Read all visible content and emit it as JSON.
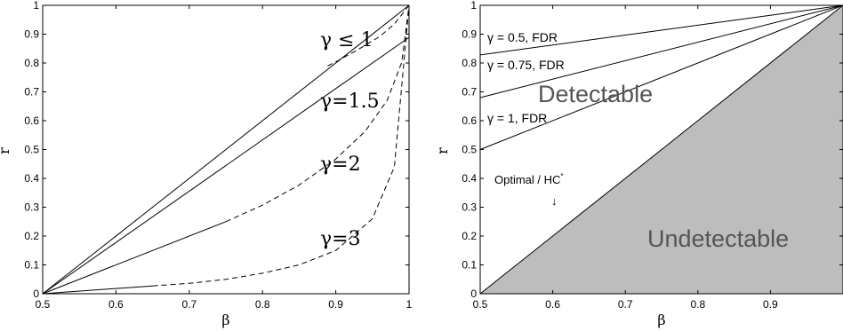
{
  "chart_data": [
    {
      "type": "line",
      "xlabel": "β",
      "ylabel": "r",
      "xlim": [
        0.5,
        1
      ],
      "ylim": [
        0,
        1
      ],
      "xticks": [
        "0.5",
        "0.6",
        "0.7",
        "0.8",
        "0.9",
        "1"
      ],
      "yticks": [
        "0",
        "0.1",
        "0.2",
        "0.3",
        "0.4",
        "0.5",
        "0.6",
        "0.7",
        "0.8",
        "0.9",
        "1"
      ],
      "series": [
        {
          "name": "γ ≤ 1",
          "style": "solid",
          "x": [
            0.5,
            1.0
          ],
          "y": [
            0.0,
            1.0
          ]
        },
        {
          "name": "γ=1.5",
          "style": "solid",
          "x": [
            0.5,
            1.0
          ],
          "y": [
            0.0,
            0.889
          ]
        },
        {
          "name": "γ=1.5",
          "style": "dashed",
          "x": [
            0.889,
            0.9,
            0.93,
            0.96,
            0.98,
            1.0
          ],
          "y": [
            0.79,
            0.804,
            0.846,
            0.892,
            0.935,
            1.0
          ]
        },
        {
          "name": "γ=2",
          "style": "solid",
          "x": [
            0.5,
            0.75
          ],
          "y": [
            0.0,
            0.25
          ]
        },
        {
          "name": "γ=2",
          "style": "dashed",
          "x": [
            0.75,
            0.8,
            0.85,
            0.9,
            0.94,
            0.97,
            0.99,
            1.0
          ],
          "y": [
            0.25,
            0.307,
            0.377,
            0.467,
            0.563,
            0.67,
            0.802,
            1.0
          ]
        },
        {
          "name": "γ=3",
          "style": "solid",
          "x": [
            0.5,
            0.65
          ],
          "y": [
            0.0,
            0.027
          ]
        },
        {
          "name": "γ=3",
          "style": "dashed",
          "x": [
            0.65,
            0.7,
            0.75,
            0.8,
            0.85,
            0.9,
            0.95,
            0.98,
            1.0
          ],
          "y": [
            0.027,
            0.036,
            0.05,
            0.071,
            0.1,
            0.15,
            0.26,
            0.44,
            1.0
          ]
        }
      ],
      "annotations": [
        "γ ≤ 1",
        "γ=1.5",
        "γ=2",
        "γ=3"
      ]
    },
    {
      "type": "area",
      "xlabel": "β",
      "ylabel": "r",
      "xlim": [
        0.5,
        1
      ],
      "ylim": [
        0,
        1
      ],
      "xticks": [
        "0.5",
        "0.6",
        "0.7",
        "0.8",
        "0.9"
      ],
      "yticks": [
        "0",
        "0.1",
        "0.2",
        "0.3",
        "0.4",
        "0.5",
        "0.6",
        "0.7",
        "0.8",
        "0.9",
        "1"
      ],
      "series": [
        {
          "name": "γ = 0.5, FDR",
          "style": "solid",
          "x": [
            0.5,
            1.0
          ],
          "y": [
            0.828,
            1.0
          ]
        },
        {
          "name": "γ = 0.75, FDR",
          "style": "solid",
          "x": [
            0.5,
            1.0
          ],
          "y": [
            0.68,
            1.0
          ]
        },
        {
          "name": "γ = 1, FDR",
          "style": "solid",
          "x": [
            0.5,
            1.0
          ],
          "y": [
            0.5,
            1.0
          ]
        },
        {
          "name": "Optimal / HC*",
          "style": "solid",
          "x": [
            0.5,
            1.0
          ],
          "y": [
            0.0,
            1.0
          ]
        }
      ],
      "regions": {
        "above": "Detectable",
        "below": "Undetectable"
      },
      "region_fill": "#bdbdbd",
      "annotations": [
        "Optimal / HC*",
        "↓"
      ]
    }
  ],
  "text": {
    "left": {
      "labels": [
        "γ ≤ 1",
        "γ=1.5",
        "γ=2",
        "γ=3"
      ]
    },
    "right": {
      "fdr_labels": [
        "γ = 0.5, FDR",
        "γ = 0.75, FDR",
        "γ = 1, FDR"
      ],
      "detectable": "Detectable",
      "undetectable": "Undetectable",
      "optimal": "Optimal / HC",
      "optimal_star": "*",
      "arrow": "↓"
    }
  }
}
